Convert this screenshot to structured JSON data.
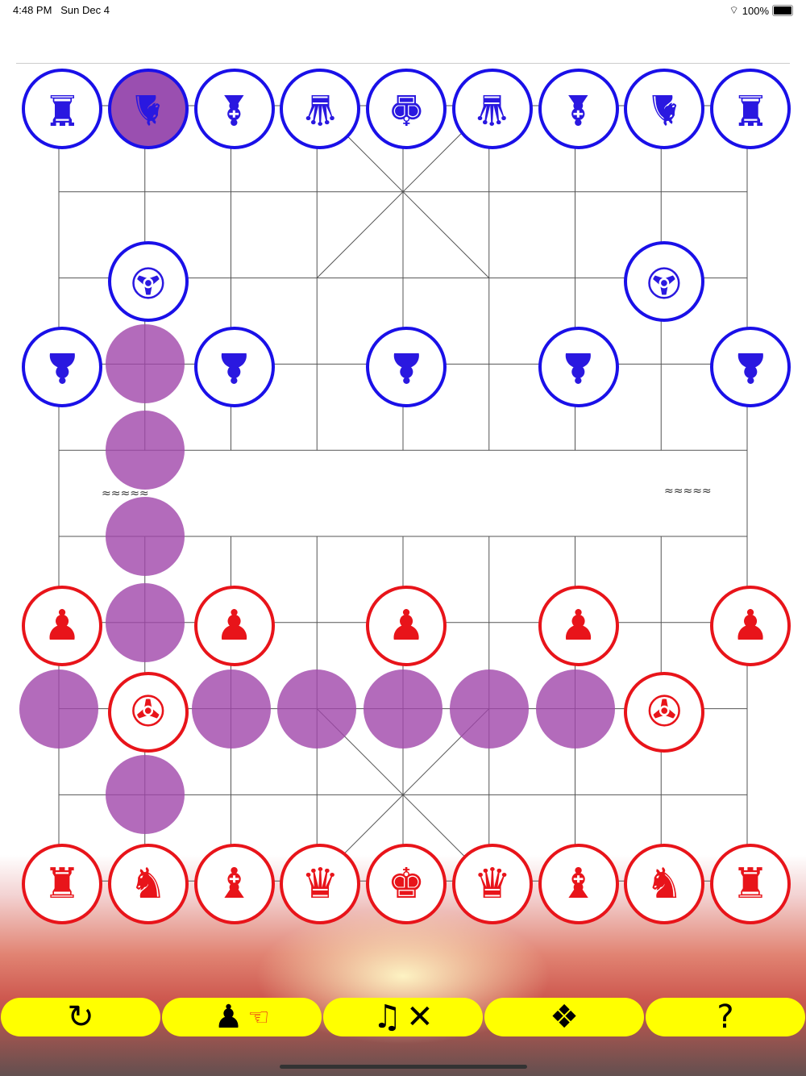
{
  "status_bar": {
    "time": "4:48 PM",
    "date": "Sun Dec 4",
    "battery": "100%"
  },
  "board": {
    "river_left": "≈≈≈≈≈",
    "river_right": "≈≈≈≈≈",
    "colors": {
      "blue": "#1a10e8",
      "red": "#e8141a",
      "marker": "#a046aa",
      "button": "#ffff00"
    },
    "glyphs": {
      "chariot": "♜",
      "horse": "♞",
      "elephant": "♝",
      "advisor": "♛",
      "general": "♚",
      "cannon": "✇",
      "soldier": "♟"
    },
    "pieces": [
      {
        "side": "blue",
        "type": "chariot",
        "col": 0,
        "row": 0
      },
      {
        "side": "blue",
        "type": "horse",
        "col": 1,
        "row": 0,
        "selected": true
      },
      {
        "side": "blue",
        "type": "elephant",
        "col": 2,
        "row": 0
      },
      {
        "side": "blue",
        "type": "advisor",
        "col": 3,
        "row": 0
      },
      {
        "side": "blue",
        "type": "general",
        "col": 4,
        "row": 0
      },
      {
        "side": "blue",
        "type": "advisor",
        "col": 5,
        "row": 0
      },
      {
        "side": "blue",
        "type": "elephant",
        "col": 6,
        "row": 0
      },
      {
        "side": "blue",
        "type": "horse",
        "col": 7,
        "row": 0
      },
      {
        "side": "blue",
        "type": "chariot",
        "col": 8,
        "row": 0
      },
      {
        "side": "blue",
        "type": "cannon",
        "col": 1,
        "row": 2
      },
      {
        "side": "blue",
        "type": "cannon",
        "col": 7,
        "row": 2
      },
      {
        "side": "blue",
        "type": "soldier",
        "col": 0,
        "row": 3
      },
      {
        "side": "blue",
        "type": "soldier",
        "col": 2,
        "row": 3
      },
      {
        "side": "blue",
        "type": "soldier",
        "col": 4,
        "row": 3
      },
      {
        "side": "blue",
        "type": "soldier",
        "col": 6,
        "row": 3
      },
      {
        "side": "blue",
        "type": "soldier",
        "col": 8,
        "row": 3
      },
      {
        "side": "red",
        "type": "soldier",
        "col": 0,
        "row": 6
      },
      {
        "side": "red",
        "type": "soldier",
        "col": 2,
        "row": 6
      },
      {
        "side": "red",
        "type": "soldier",
        "col": 4,
        "row": 6
      },
      {
        "side": "red",
        "type": "soldier",
        "col": 6,
        "row": 6
      },
      {
        "side": "red",
        "type": "soldier",
        "col": 8,
        "row": 6
      },
      {
        "side": "red",
        "type": "cannon",
        "col": 1,
        "row": 7
      },
      {
        "side": "red",
        "type": "cannon",
        "col": 7,
        "row": 7
      },
      {
        "side": "red",
        "type": "chariot",
        "col": 0,
        "row": 9
      },
      {
        "side": "red",
        "type": "horse",
        "col": 1,
        "row": 9
      },
      {
        "side": "red",
        "type": "elephant",
        "col": 2,
        "row": 9
      },
      {
        "side": "red",
        "type": "advisor",
        "col": 3,
        "row": 9
      },
      {
        "side": "red",
        "type": "general",
        "col": 4,
        "row": 9
      },
      {
        "side": "red",
        "type": "advisor",
        "col": 5,
        "row": 9
      },
      {
        "side": "red",
        "type": "elephant",
        "col": 6,
        "row": 9
      },
      {
        "side": "red",
        "type": "horse",
        "col": 7,
        "row": 9
      },
      {
        "side": "red",
        "type": "chariot",
        "col": 8,
        "row": 9
      }
    ],
    "move_markers": [
      [
        1,
        3
      ],
      [
        1,
        4
      ],
      [
        1,
        5
      ],
      [
        1,
        6
      ],
      [
        0,
        7
      ],
      [
        2,
        7
      ],
      [
        3,
        7
      ],
      [
        4,
        7
      ],
      [
        5,
        7
      ],
      [
        6,
        7
      ],
      [
        1,
        8
      ]
    ]
  },
  "toolbar": {
    "restart": "↻",
    "pawn": "♟",
    "hand": "☜",
    "music": "♫",
    "mute": "✕",
    "menu": "❖",
    "help": "?"
  }
}
